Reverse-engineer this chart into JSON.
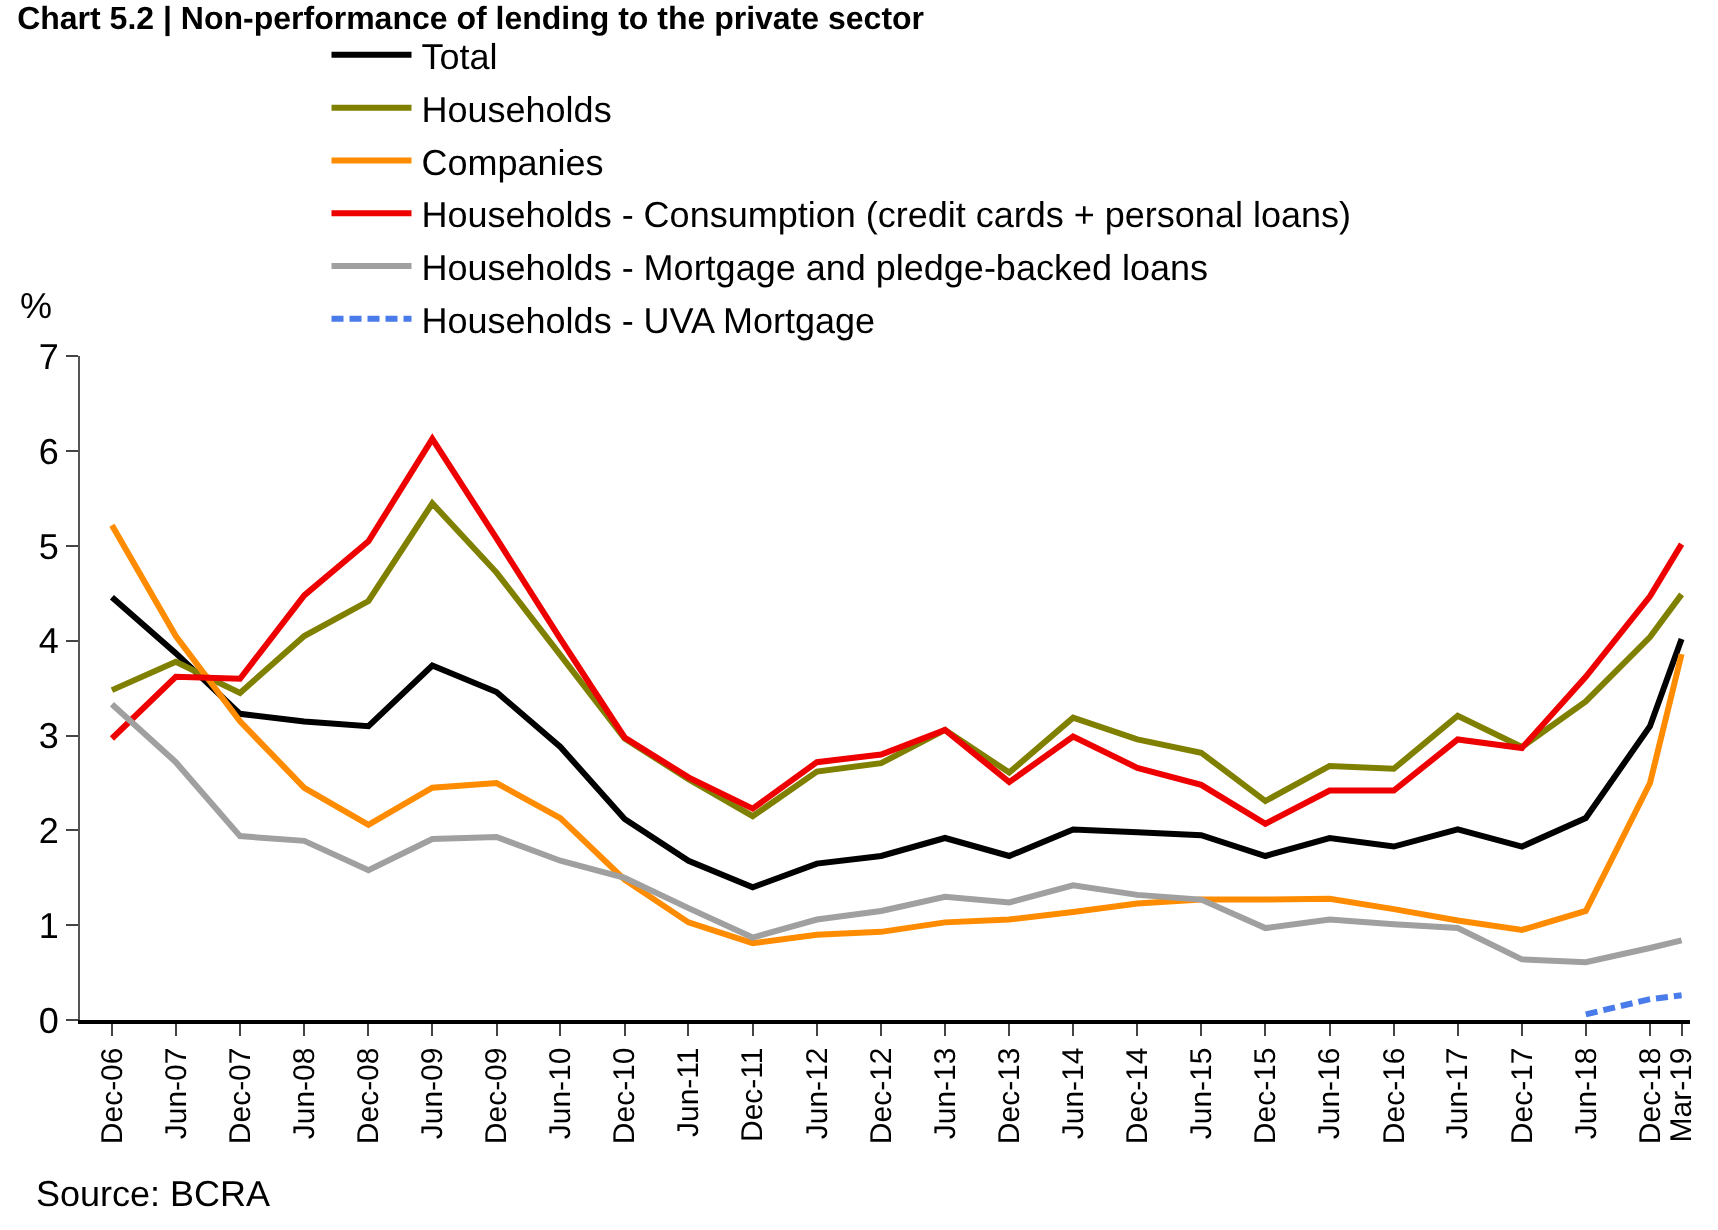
{
  "chart_data": {
    "type": "line",
    "title": "Chart 5.2 | Non-performance of lending to the private sector",
    "ylabel": "%",
    "x": [
      "2006-12",
      "2007-06",
      "2007-12",
      "2008-06",
      "2008-12",
      "2009-06",
      "2009-12",
      "2010-06",
      "2010-12",
      "2011-06",
      "2011-12",
      "2012-06",
      "2012-12",
      "2013-06",
      "2013-12",
      "2014-06",
      "2014-12",
      "2015-06",
      "2015-12",
      "2016-06",
      "2016-12",
      "2017-06",
      "2017-12",
      "2018-06",
      "2018-12",
      "2019-03"
    ],
    "series": [
      {
        "name": "Total",
        "color": "#000000",
        "values": [
          4.46,
          3.87,
          3.23,
          3.15,
          3.1,
          3.74,
          3.46,
          2.88,
          2.12,
          1.68,
          1.4,
          1.65,
          1.73,
          1.92,
          1.73,
          2.01,
          1.98,
          1.95,
          1.73,
          1.92,
          1.83,
          2.01,
          1.83,
          2.13,
          3.1,
          4.02
        ]
      },
      {
        "name": "Households",
        "color": "#7f7f00",
        "values": [
          3.48,
          3.78,
          3.45,
          4.05,
          4.42,
          5.45,
          4.72,
          3.85,
          2.97,
          2.54,
          2.15,
          2.62,
          2.71,
          3.06,
          2.61,
          3.19,
          2.96,
          2.82,
          2.31,
          2.68,
          2.65,
          3.21,
          2.88,
          3.36,
          4.04,
          4.49
        ]
      },
      {
        "name": "Companies",
        "color": "#ff8c00",
        "values": [
          5.22,
          4.05,
          3.15,
          2.45,
          2.06,
          2.45,
          2.5,
          2.13,
          1.48,
          1.03,
          0.81,
          0.9,
          0.93,
          1.03,
          1.06,
          1.14,
          1.23,
          1.27,
          1.27,
          1.28,
          1.17,
          1.05,
          0.95,
          1.15,
          2.5,
          3.86
        ]
      },
      {
        "name": "Households - Consumption (credit cards + personal loans)",
        "color": "#ee0000",
        "values": [
          2.97,
          3.62,
          3.6,
          4.48,
          5.05,
          6.13,
          5.08,
          4.02,
          2.98,
          2.56,
          2.23,
          2.72,
          2.8,
          3.06,
          2.51,
          2.99,
          2.66,
          2.48,
          2.07,
          2.42,
          2.42,
          2.96,
          2.87,
          3.62,
          4.47,
          5.02
        ]
      },
      {
        "name": "Households - Mortgage and pledge-backed loans",
        "color": "#a0a0a0",
        "values": [
          3.33,
          2.72,
          1.94,
          1.89,
          1.58,
          1.91,
          1.93,
          1.68,
          1.5,
          1.18,
          0.87,
          1.06,
          1.15,
          1.3,
          1.24,
          1.42,
          1.32,
          1.27,
          0.97,
          1.06,
          1.01,
          0.97,
          0.64,
          0.61,
          0.76,
          0.84
        ]
      },
      {
        "name": "Households - UVA Mortgage",
        "color": "#4a7bea",
        "line_style": "dashed",
        "values": [
          null,
          null,
          null,
          null,
          null,
          null,
          null,
          null,
          null,
          null,
          null,
          null,
          null,
          null,
          null,
          null,
          null,
          null,
          null,
          null,
          null,
          null,
          null,
          0.06,
          0.22,
          0.26
        ]
      }
    ],
    "xlim": [
      "2006-09-01",
      "2019-03-25"
    ],
    "xticks": [
      {
        "value": "2006-12",
        "label": "Dec-06"
      },
      {
        "value": "2007-06",
        "label": "Jun-07"
      },
      {
        "value": "2007-12",
        "label": "Dec-07"
      },
      {
        "value": "2008-06",
        "label": "Jun-08"
      },
      {
        "value": "2008-12",
        "label": "Dec-08"
      },
      {
        "value": "2009-06",
        "label": "Jun-09"
      },
      {
        "value": "2009-12",
        "label": "Dec-09"
      },
      {
        "value": "2010-06",
        "label": "Jun-10"
      },
      {
        "value": "2010-12",
        "label": "Dec-10"
      },
      {
        "value": "2011-06",
        "label": "Jun-11"
      },
      {
        "value": "2011-12",
        "label": "Dec-11"
      },
      {
        "value": "2012-06",
        "label": "Jun-12"
      },
      {
        "value": "2012-12",
        "label": "Dec-12"
      },
      {
        "value": "2013-06",
        "label": "Jun-13"
      },
      {
        "value": "2013-12",
        "label": "Dec-13"
      },
      {
        "value": "2014-06",
        "label": "Jun-14"
      },
      {
        "value": "2014-12",
        "label": "Dec-14"
      },
      {
        "value": "2015-06",
        "label": "Jun-15"
      },
      {
        "value": "2015-12",
        "label": "Dec-15"
      },
      {
        "value": "2016-06",
        "label": "Jun-16"
      },
      {
        "value": "2016-12",
        "label": "Dec-16"
      },
      {
        "value": "2017-06",
        "label": "Jun-17"
      },
      {
        "value": "2017-12",
        "label": "Dec-17"
      },
      {
        "value": "2018-06",
        "label": "Jun-18"
      },
      {
        "value": "2018-12",
        "label": "Dec-18"
      },
      {
        "value": "2019-03",
        "label": "Mar-19"
      }
    ],
    "ylim": [
      0,
      7
    ],
    "yticks": [
      0,
      1,
      2,
      3,
      4,
      5,
      6,
      7
    ],
    "grid": false,
    "legend": "top left",
    "marker": "none",
    "line_style": "solid",
    "annotations": [
      "Source: BCRA"
    ]
  }
}
